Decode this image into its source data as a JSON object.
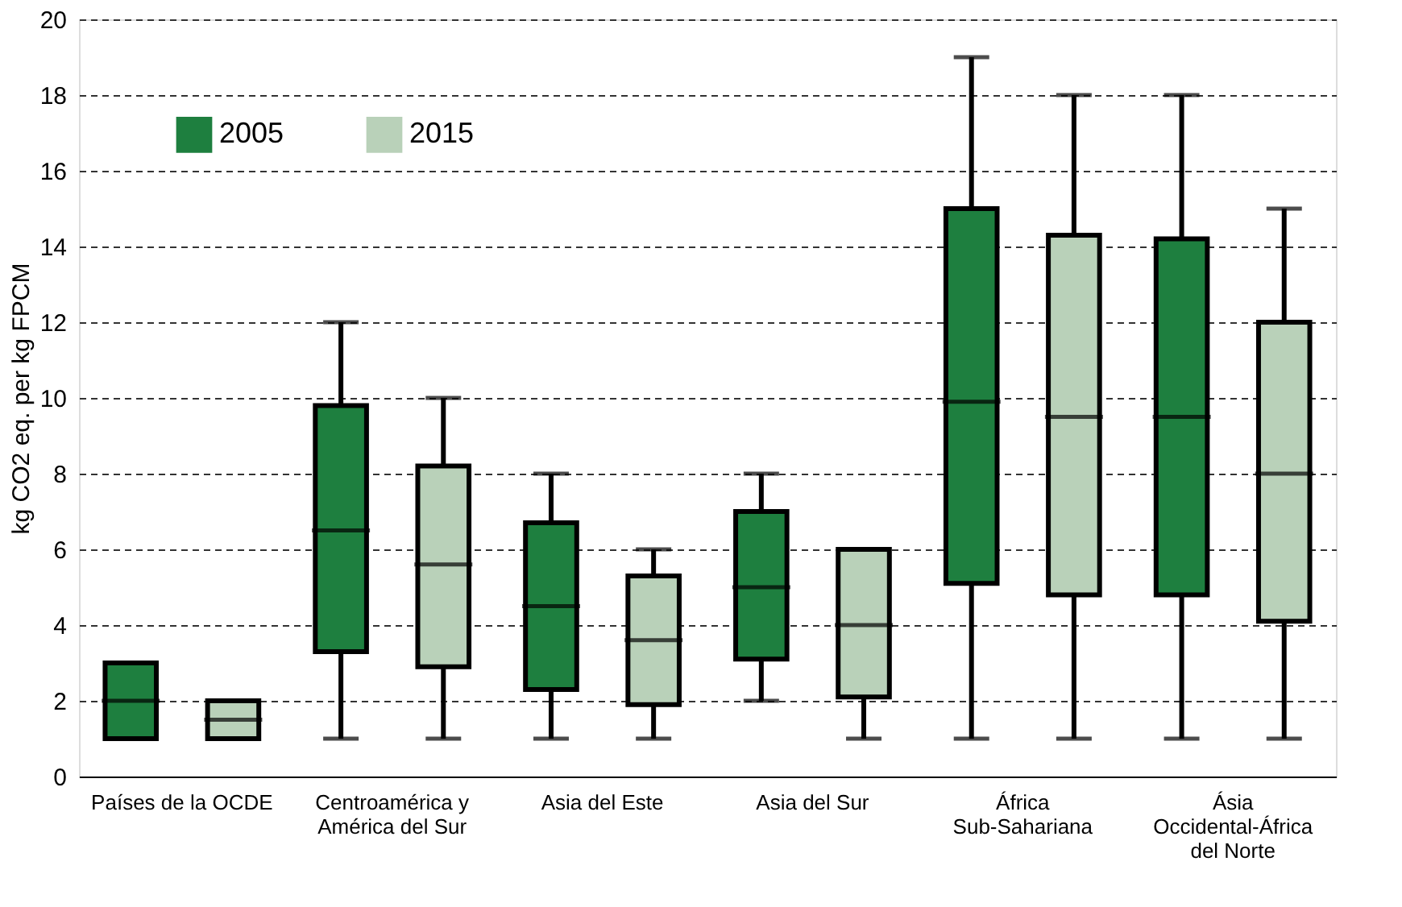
{
  "chart_data": {
    "type": "box",
    "ylabel": "kg CO2 eq. per kg FPCM",
    "categories": [
      "Países de la OCDE",
      "Centroamérica y\nAmérica del Sur",
      "Asia del Este",
      "Asia del Sur",
      "África\nSub-Sahariana",
      "Ásia\nOccidental-África\ndel Norte"
    ],
    "ylim": [
      0,
      20
    ],
    "yticks": [
      0,
      2,
      4,
      6,
      8,
      10,
      12,
      14,
      16,
      18,
      20
    ],
    "grid": "y",
    "legend": "top left",
    "series": [
      {
        "name": "2005",
        "color": "#1e7f3f",
        "boxes": [
          {
            "low": 1,
            "q1": 1,
            "median": 2,
            "q3": 3,
            "high": 3
          },
          {
            "low": 1,
            "q1": 3.3,
            "median": 6.5,
            "q3": 9.8,
            "high": 12
          },
          {
            "low": 1,
            "q1": 2.3,
            "median": 4.5,
            "q3": 6.7,
            "high": 8
          },
          {
            "low": 2,
            "q1": 3.1,
            "median": 5,
            "q3": 7,
            "high": 8
          },
          {
            "low": 1,
            "q1": 5.1,
            "median": 9.9,
            "q3": 15,
            "high": 19
          },
          {
            "low": 1,
            "q1": 4.8,
            "median": 9.5,
            "q3": 14.2,
            "high": 18
          }
        ]
      },
      {
        "name": "2015",
        "color": "#b9d1b9",
        "boxes": [
          {
            "low": 1,
            "q1": 1,
            "median": 1.5,
            "q3": 2,
            "high": 2
          },
          {
            "low": 1,
            "q1": 2.9,
            "median": 5.6,
            "q3": 8.2,
            "high": 10
          },
          {
            "low": 1,
            "q1": 1.9,
            "median": 3.6,
            "q3": 5.3,
            "high": 6
          },
          {
            "low": 1,
            "q1": 2.1,
            "median": 4,
            "q3": 6,
            "high": 6
          },
          {
            "low": 1,
            "q1": 4.8,
            "median": 9.5,
            "q3": 14.3,
            "high": 18
          },
          {
            "low": 1,
            "q1": 4.1,
            "median": 8,
            "q3": 12,
            "high": 15
          }
        ]
      }
    ]
  }
}
